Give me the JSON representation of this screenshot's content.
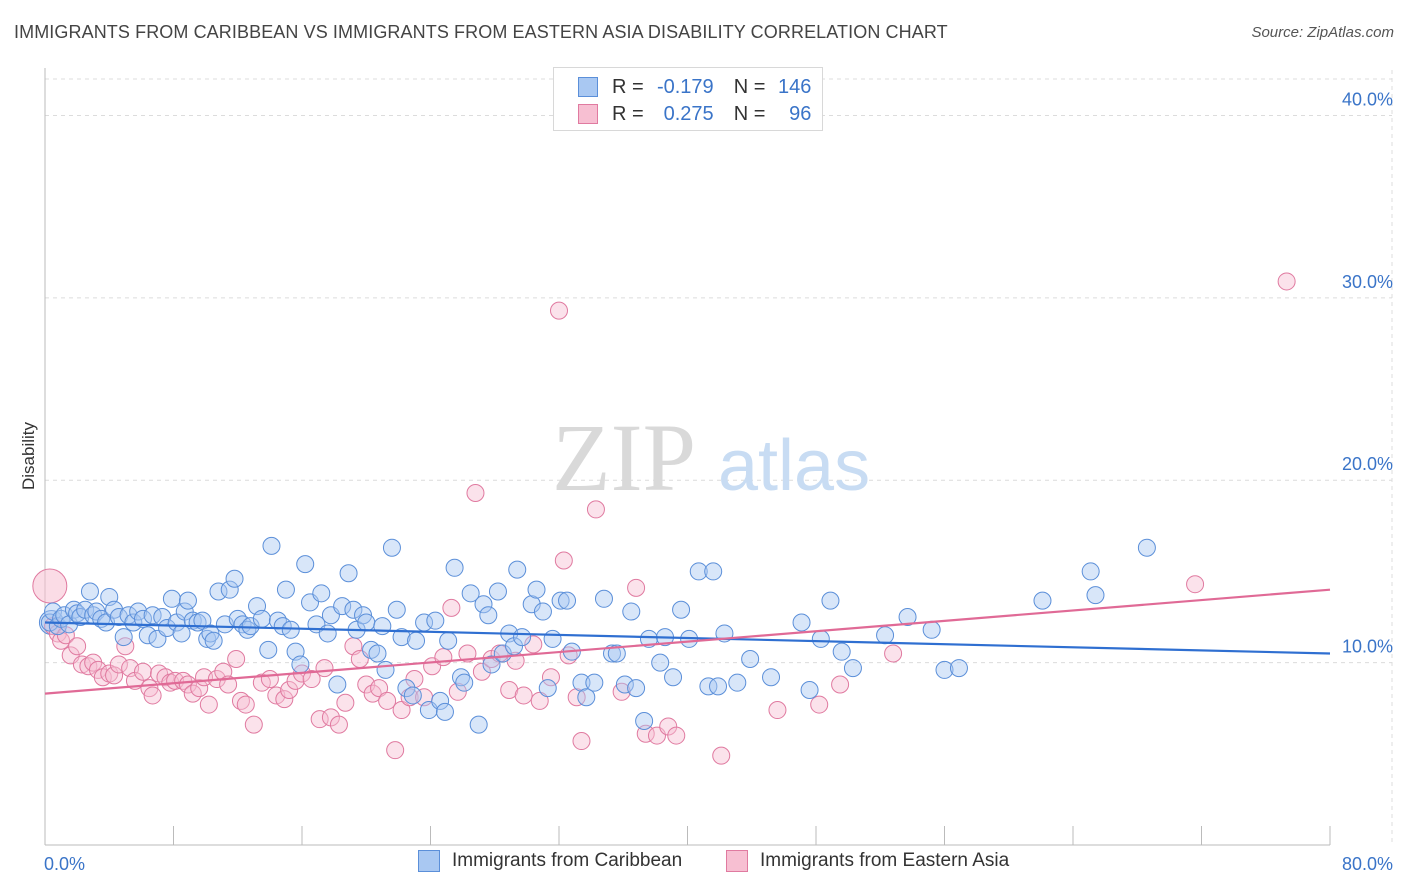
{
  "title": "IMMIGRANTS FROM CARIBBEAN VS IMMIGRANTS FROM EASTERN ASIA DISABILITY CORRELATION CHART",
  "source": "Source: ZipAtlas.com",
  "watermark": {
    "zip": "ZIP",
    "atlas": "atlas"
  },
  "legend": {
    "r_label": "R =",
    "n_label": "N =",
    "rows": [
      {
        "r": "-0.179",
        "n": "146",
        "fill": "#a9c8f2",
        "stroke": "#5b8fd9"
      },
      {
        "r": "0.275",
        "n": "96",
        "fill": "#f7bfd2",
        "stroke": "#e07aa0"
      }
    ]
  },
  "chart_data": {
    "type": "scatter",
    "ylabel": "Disability",
    "xlim": [
      0,
      80
    ],
    "ylim": [
      0,
      42
    ],
    "x_tick_labels": [
      "0.0%",
      "80.0%"
    ],
    "y_ticks": [
      10,
      20,
      30,
      40
    ],
    "y_tick_labels": [
      "10.0%",
      "20.0%",
      "30.0%",
      "40.0%"
    ],
    "series": [
      {
        "name": "Immigrants from Caribbean",
        "fill": "#a9c8f2",
        "stroke": "#5b8fd9",
        "trend_color": "#2f6fd1",
        "trend": [
          [
            0,
            12.2
          ],
          [
            80,
            10.5
          ]
        ],
        "points": [
          [
            0.3,
            12.2
          ],
          [
            0.5,
            12.8
          ],
          [
            0.8,
            12.0
          ],
          [
            1.0,
            12.4
          ],
          [
            1.2,
            12.6
          ],
          [
            1.5,
            12.1
          ],
          [
            1.8,
            12.9
          ],
          [
            2.0,
            12.7
          ],
          [
            2.2,
            12.5
          ],
          [
            2.5,
            12.9
          ],
          [
            2.8,
            13.9
          ],
          [
            3.0,
            12.6
          ],
          [
            3.2,
            12.8
          ],
          [
            3.5,
            12.4
          ],
          [
            3.8,
            12.2
          ],
          [
            4.0,
            13.6
          ],
          [
            4.3,
            12.9
          ],
          [
            4.6,
            12.5
          ],
          [
            4.9,
            11.4
          ],
          [
            5.2,
            12.6
          ],
          [
            5.5,
            12.2
          ],
          [
            5.8,
            12.8
          ],
          [
            6.1,
            12.4
          ],
          [
            6.4,
            11.5
          ],
          [
            6.7,
            12.6
          ],
          [
            7.0,
            11.3
          ],
          [
            7.3,
            12.5
          ],
          [
            7.6,
            11.9
          ],
          [
            7.9,
            13.5
          ],
          [
            8.2,
            12.2
          ],
          [
            8.5,
            11.6
          ],
          [
            8.7,
            12.8
          ],
          [
            8.9,
            13.4
          ],
          [
            9.2,
            12.3
          ],
          [
            9.5,
            12.2
          ],
          [
            9.8,
            12.3
          ],
          [
            10.1,
            11.3
          ],
          [
            10.3,
            11.6
          ],
          [
            10.5,
            11.2
          ],
          [
            10.8,
            13.9
          ],
          [
            11.2,
            12.1
          ],
          [
            11.5,
            14.0
          ],
          [
            11.8,
            14.6
          ],
          [
            12.0,
            12.4
          ],
          [
            12.3,
            12.1
          ],
          [
            12.6,
            11.8
          ],
          [
            12.8,
            12.0
          ],
          [
            13.2,
            13.1
          ],
          [
            13.5,
            12.4
          ],
          [
            13.9,
            10.7
          ],
          [
            14.1,
            16.4
          ],
          [
            14.5,
            12.3
          ],
          [
            14.8,
            12.0
          ],
          [
            15.0,
            14.0
          ],
          [
            15.3,
            11.8
          ],
          [
            15.6,
            10.6
          ],
          [
            15.9,
            9.9
          ],
          [
            16.2,
            15.4
          ],
          [
            16.5,
            13.3
          ],
          [
            16.9,
            12.1
          ],
          [
            17.2,
            13.8
          ],
          [
            17.6,
            11.6
          ],
          [
            17.8,
            12.6
          ],
          [
            18.2,
            8.8
          ],
          [
            18.5,
            13.1
          ],
          [
            18.9,
            14.9
          ],
          [
            19.2,
            12.9
          ],
          [
            19.4,
            11.8
          ],
          [
            19.8,
            12.6
          ],
          [
            20.0,
            12.2
          ],
          [
            20.3,
            10.7
          ],
          [
            20.7,
            10.5
          ],
          [
            21.0,
            12.0
          ],
          [
            21.2,
            9.6
          ],
          [
            21.6,
            16.3
          ],
          [
            21.9,
            12.9
          ],
          [
            22.2,
            11.4
          ],
          [
            22.5,
            8.6
          ],
          [
            22.9,
            8.2
          ],
          [
            23.1,
            11.2
          ],
          [
            23.6,
            12.2
          ],
          [
            23.9,
            7.4
          ],
          [
            24.3,
            12.3
          ],
          [
            24.6,
            7.9
          ],
          [
            24.9,
            7.3
          ],
          [
            25.1,
            11.2
          ],
          [
            25.5,
            15.2
          ],
          [
            25.9,
            9.2
          ],
          [
            26.1,
            8.9
          ],
          [
            26.5,
            13.8
          ],
          [
            27.0,
            6.6
          ],
          [
            27.3,
            13.2
          ],
          [
            27.6,
            12.6
          ],
          [
            27.8,
            9.9
          ],
          [
            28.2,
            13.9
          ],
          [
            28.5,
            10.5
          ],
          [
            28.9,
            11.6
          ],
          [
            29.2,
            10.9
          ],
          [
            29.4,
            15.1
          ],
          [
            29.7,
            11.4
          ],
          [
            30.3,
            13.2
          ],
          [
            30.6,
            14.0
          ],
          [
            31.0,
            12.8
          ],
          [
            31.3,
            8.6
          ],
          [
            31.6,
            11.3
          ],
          [
            32.1,
            13.4
          ],
          [
            32.5,
            13.4
          ],
          [
            32.8,
            10.6
          ],
          [
            33.4,
            8.9
          ],
          [
            33.7,
            8.1
          ],
          [
            34.2,
            8.9
          ],
          [
            34.8,
            13.5
          ],
          [
            35.3,
            10.5
          ],
          [
            35.6,
            10.5
          ],
          [
            36.1,
            8.8
          ],
          [
            36.5,
            12.8
          ],
          [
            36.8,
            8.6
          ],
          [
            37.3,
            6.8
          ],
          [
            37.6,
            11.3
          ],
          [
            38.3,
            10.0
          ],
          [
            38.6,
            11.4
          ],
          [
            39.1,
            9.2
          ],
          [
            39.6,
            12.9
          ],
          [
            40.1,
            11.3
          ],
          [
            40.7,
            15.0
          ],
          [
            41.3,
            8.7
          ],
          [
            41.6,
            15.0
          ],
          [
            41.9,
            8.7
          ],
          [
            42.3,
            11.6
          ],
          [
            43.1,
            8.9
          ],
          [
            43.9,
            10.2
          ],
          [
            45.2,
            9.2
          ],
          [
            47.1,
            12.2
          ],
          [
            47.6,
            8.5
          ],
          [
            48.3,
            11.3
          ],
          [
            48.9,
            13.4
          ],
          [
            49.6,
            10.6
          ],
          [
            50.3,
            9.7
          ],
          [
            52.3,
            11.5
          ],
          [
            53.7,
            12.5
          ],
          [
            55.2,
            11.8
          ],
          [
            56.0,
            9.6
          ],
          [
            56.9,
            9.7
          ],
          [
            62.1,
            13.4
          ],
          [
            65.1,
            15.0
          ],
          [
            65.4,
            13.7
          ],
          [
            68.6,
            16.3
          ]
        ]
      },
      {
        "name": "Immigrants from Eastern Asia",
        "fill": "#f7bfd2",
        "stroke": "#e07aa0",
        "trend_color": "#e06a96",
        "trend": [
          [
            0,
            8.3
          ],
          [
            80,
            14.0
          ]
        ],
        "points": [
          [
            0.5,
            12.0
          ],
          [
            0.8,
            11.6
          ],
          [
            1.0,
            11.2
          ],
          [
            1.3,
            11.5
          ],
          [
            1.6,
            10.4
          ],
          [
            2.0,
            10.9
          ],
          [
            2.3,
            9.9
          ],
          [
            2.7,
            9.8
          ],
          [
            3.0,
            10.0
          ],
          [
            3.3,
            9.6
          ],
          [
            3.6,
            9.2
          ],
          [
            4.0,
            9.4
          ],
          [
            4.3,
            9.3
          ],
          [
            4.6,
            9.9
          ],
          [
            5.0,
            10.9
          ],
          [
            5.3,
            9.7
          ],
          [
            5.6,
            9.0
          ],
          [
            6.1,
            9.5
          ],
          [
            6.5,
            8.6
          ],
          [
            6.7,
            8.2
          ],
          [
            7.1,
            9.4
          ],
          [
            7.5,
            9.2
          ],
          [
            7.8,
            8.9
          ],
          [
            8.1,
            9.0
          ],
          [
            8.6,
            9.0
          ],
          [
            8.9,
            8.8
          ],
          [
            9.2,
            8.3
          ],
          [
            9.6,
            8.6
          ],
          [
            9.9,
            9.2
          ],
          [
            10.2,
            7.7
          ],
          [
            10.7,
            9.1
          ],
          [
            11.1,
            9.5
          ],
          [
            11.4,
            8.8
          ],
          [
            11.9,
            10.2
          ],
          [
            12.2,
            7.9
          ],
          [
            12.5,
            7.7
          ],
          [
            13.0,
            6.6
          ],
          [
            13.5,
            8.9
          ],
          [
            14.0,
            9.1
          ],
          [
            14.4,
            8.2
          ],
          [
            14.9,
            8.0
          ],
          [
            15.2,
            8.5
          ],
          [
            15.6,
            9.0
          ],
          [
            16.0,
            9.4
          ],
          [
            16.6,
            9.1
          ],
          [
            17.1,
            6.9
          ],
          [
            17.4,
            9.7
          ],
          [
            17.8,
            7.0
          ],
          [
            18.3,
            6.6
          ],
          [
            18.7,
            7.8
          ],
          [
            19.2,
            10.9
          ],
          [
            19.6,
            10.2
          ],
          [
            20.0,
            8.8
          ],
          [
            20.4,
            8.3
          ],
          [
            20.8,
            8.6
          ],
          [
            21.3,
            7.9
          ],
          [
            21.8,
            5.2
          ],
          [
            22.2,
            7.4
          ],
          [
            22.7,
            8.1
          ],
          [
            23.0,
            9.1
          ],
          [
            23.6,
            8.1
          ],
          [
            24.1,
            9.8
          ],
          [
            24.8,
            10.3
          ],
          [
            25.3,
            13.0
          ],
          [
            25.7,
            8.4
          ],
          [
            26.3,
            10.5
          ],
          [
            26.8,
            19.3
          ],
          [
            27.2,
            9.5
          ],
          [
            27.8,
            10.2
          ],
          [
            28.3,
            10.5
          ],
          [
            28.9,
            8.5
          ],
          [
            29.3,
            10.1
          ],
          [
            29.8,
            8.2
          ],
          [
            30.4,
            11.0
          ],
          [
            30.8,
            7.9
          ],
          [
            31.5,
            9.2
          ],
          [
            32.0,
            29.3
          ],
          [
            32.3,
            15.6
          ],
          [
            32.6,
            10.4
          ],
          [
            33.1,
            8.1
          ],
          [
            33.4,
            5.7
          ],
          [
            34.3,
            18.4
          ],
          [
            35.9,
            8.4
          ],
          [
            36.8,
            14.1
          ],
          [
            37.4,
            6.1
          ],
          [
            38.1,
            6.0
          ],
          [
            38.8,
            6.5
          ],
          [
            39.3,
            6.0
          ],
          [
            42.1,
            4.9
          ],
          [
            45.6,
            7.4
          ],
          [
            48.2,
            7.7
          ],
          [
            49.5,
            8.8
          ],
          [
            52.8,
            10.5
          ],
          [
            71.6,
            14.3
          ],
          [
            77.3,
            30.9
          ]
        ]
      }
    ]
  }
}
